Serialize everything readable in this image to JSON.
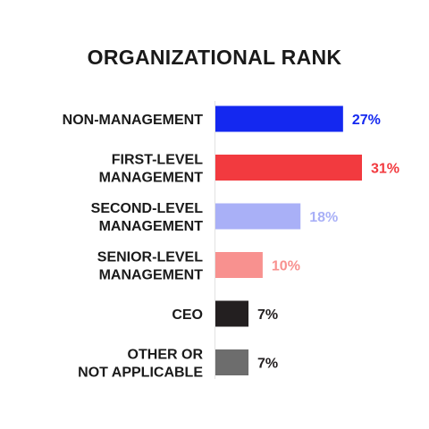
{
  "chart_data": {
    "type": "bar",
    "orientation": "horizontal",
    "title": "ORGANIZATIONAL RANK",
    "xlabel": "",
    "ylabel": "",
    "xlim": [
      0,
      31
    ],
    "grid": false,
    "legend": "none",
    "categories": [
      [
        "NON-MANAGEMENT"
      ],
      [
        "FIRST-LEVEL",
        "MANAGEMENT"
      ],
      [
        "SECOND-LEVEL",
        "MANAGEMENT"
      ],
      [
        "SENIOR-LEVEL",
        "MANAGEMENT"
      ],
      [
        "CEO"
      ],
      [
        "OTHER OR",
        "NOT APPLICABLE"
      ]
    ],
    "values": [
      27,
      31,
      18,
      10,
      7,
      7
    ],
    "value_labels": [
      "27%",
      "31%",
      "18%",
      "10%",
      "7%",
      "7%"
    ],
    "colors": [
      "#1428f0",
      "#f23a3f",
      "#a9b0f7",
      "#f8918f",
      "#231f20",
      "#6d6d6d"
    ],
    "label_colors": [
      "#1428f0",
      "#f23a3f",
      "#a9b0f7",
      "#f8918f",
      "#231f20",
      "#231f20"
    ]
  }
}
